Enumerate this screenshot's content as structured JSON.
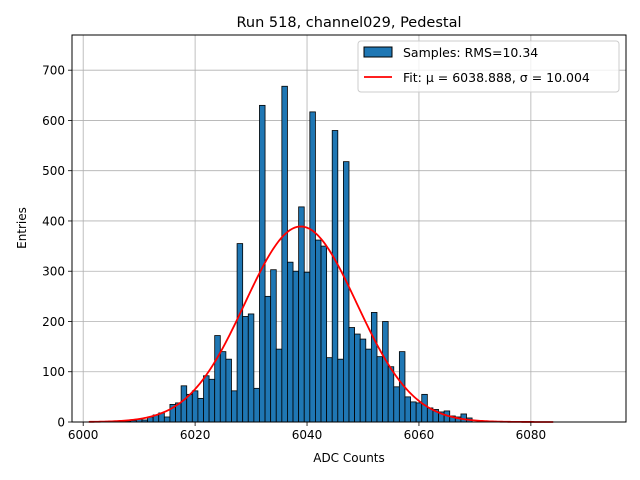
{
  "chart_data": {
    "type": "bar",
    "title": "Run 518, channel029, Pedestal",
    "xlabel": "ADC Counts",
    "ylabel": "Entries",
    "xlim": [
      5998,
      6097
    ],
    "ylim": [
      0,
      770
    ],
    "xticks": [
      6000,
      6020,
      6040,
      6060,
      6080
    ],
    "yticks": [
      0,
      100,
      200,
      300,
      400,
      500,
      600,
      700
    ],
    "grid": true,
    "legend_position": "top-right",
    "bin_width": 1,
    "series": [
      {
        "name": "Samples: RMS=10.34",
        "kind": "histogram",
        "color": "#1f77b4",
        "edgecolor": "#000000",
        "bins": [
          6008,
          6009,
          6010,
          6011,
          6012,
          6013,
          6014,
          6015,
          6016,
          6017,
          6018,
          6019,
          6020,
          6021,
          6022,
          6023,
          6024,
          6025,
          6026,
          6027,
          6028,
          6029,
          6030,
          6031,
          6032,
          6033,
          6034,
          6035,
          6036,
          6037,
          6038,
          6039,
          6040,
          6041,
          6042,
          6043,
          6044,
          6045,
          6046,
          6047,
          6048,
          6049,
          6050,
          6051,
          6052,
          6053,
          6054,
          6055,
          6056,
          6057,
          6058,
          6059,
          6060,
          6061,
          6062,
          6063,
          6064,
          6065,
          6066,
          6067,
          6068,
          6069
        ],
        "values": [
          2,
          3,
          6,
          4,
          10,
          14,
          18,
          10,
          35,
          38,
          72,
          55,
          62,
          47,
          92,
          85,
          172,
          140,
          125,
          62,
          355,
          210,
          215,
          67,
          630,
          250,
          303,
          145,
          668,
          318,
          300,
          428,
          298,
          617,
          362,
          350,
          128,
          580,
          125,
          518,
          188,
          175,
          165,
          145,
          218,
          130,
          200,
          110,
          70,
          140,
          50,
          40,
          38,
          55,
          28,
          25,
          20,
          22,
          12,
          10,
          16,
          8
        ]
      },
      {
        "name": "Fit: μ = 6038.888, σ = 10.004",
        "kind": "line",
        "color": "#ff0000",
        "mu": 6038.888,
        "sigma": 10.004,
        "amplitude": 389,
        "x_range": [
          6001,
          6084
        ]
      }
    ]
  }
}
